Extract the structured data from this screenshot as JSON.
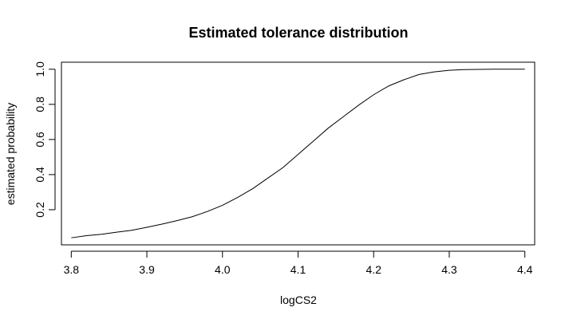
{
  "chart_data": {
    "type": "line",
    "title": "Estimated tolerance distribution",
    "xlabel": "logCS2",
    "ylabel": "estimated probability",
    "xlim": [
      3.787,
      4.413
    ],
    "ylim": [
      -0.0,
      1.04
    ],
    "xticks": [
      3.8,
      3.9,
      4.0,
      4.1,
      4.2,
      4.3,
      4.4
    ],
    "xtick_labels": [
      "3.8",
      "3.9",
      "4.0",
      "4.1",
      "4.2",
      "4.3",
      "4.4"
    ],
    "yticks": [
      0.2,
      0.4,
      0.6,
      0.8,
      1.0
    ],
    "ytick_labels": [
      "0.2",
      "0.4",
      "0.6",
      "0.8",
      "1.0"
    ],
    "grid": false,
    "legend": "none",
    "series": [
      {
        "x": [
          3.8,
          3.82,
          3.84,
          3.86,
          3.88,
          3.9,
          3.92,
          3.94,
          3.96,
          3.98,
          4.0,
          4.02,
          4.04,
          4.06,
          4.08,
          4.1,
          4.12,
          4.14,
          4.16,
          4.18,
          4.2,
          4.22,
          4.24,
          4.26,
          4.28,
          4.3,
          4.32,
          4.34,
          4.36,
          4.38,
          4.4
        ],
        "y": [
          0.04,
          0.052,
          0.06,
          0.072,
          0.083,
          0.1,
          0.118,
          0.138,
          0.16,
          0.19,
          0.225,
          0.27,
          0.32,
          0.38,
          0.44,
          0.515,
          0.59,
          0.665,
          0.73,
          0.795,
          0.855,
          0.905,
          0.94,
          0.97,
          0.985,
          0.994,
          0.998,
          0.999,
          1.0,
          1.0,
          1.0
        ]
      }
    ]
  }
}
